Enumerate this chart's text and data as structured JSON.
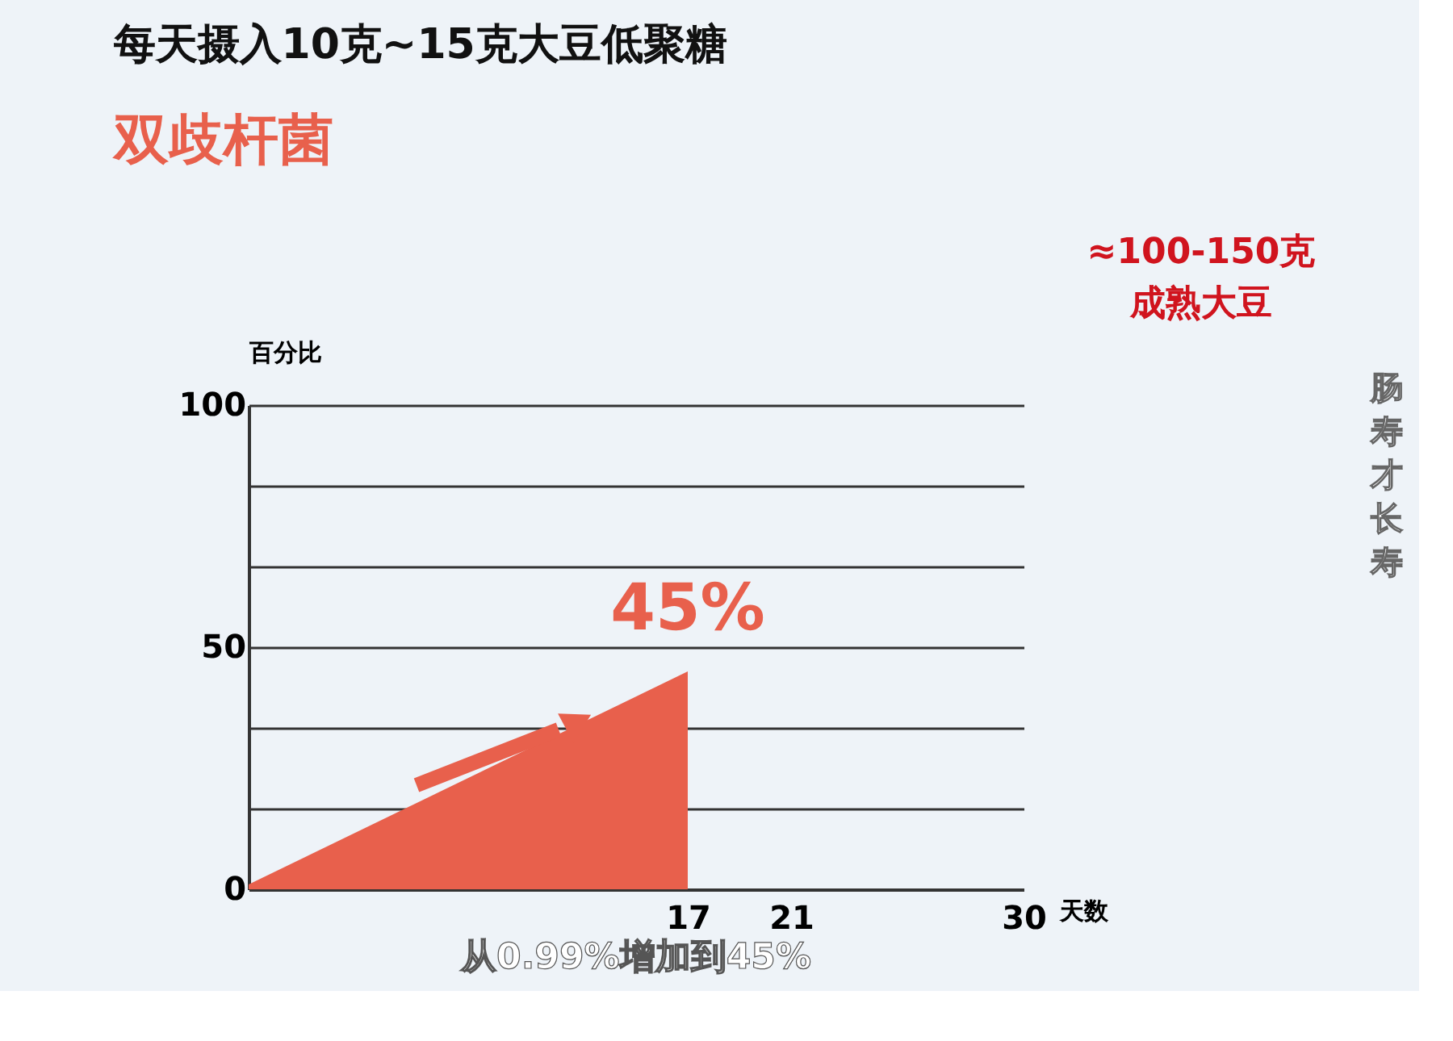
{
  "chart_data": {
    "type": "area",
    "title": "每天摄入10克~15克大豆低聚糖",
    "subtitle": "双歧杆菌",
    "xlabel": "天数",
    "ylabel": "百分比",
    "x": [
      0,
      17
    ],
    "series": [
      {
        "color": "#e8604c",
        "values": [
          0.99,
          45
        ]
      }
    ],
    "xlim": [
      0,
      30
    ],
    "xticks": [
      17,
      21,
      30
    ],
    "ylim": [
      0,
      100
    ],
    "yticks": [
      0,
      {
        "value": 16.67,
        "label": null
      },
      {
        "value": 33.33,
        "label": null
      },
      50,
      {
        "value": 66.67,
        "label": null
      },
      {
        "value": 83.33,
        "label": null
      },
      100
    ],
    "grid": "y",
    "annotations": [
      {
        "text": "45%",
        "x": 17,
        "y": 45
      },
      "从0.99%增加到45%",
      "≈100-150克",
      "成熟大豆",
      "肠寿才长寿"
    ]
  }
}
